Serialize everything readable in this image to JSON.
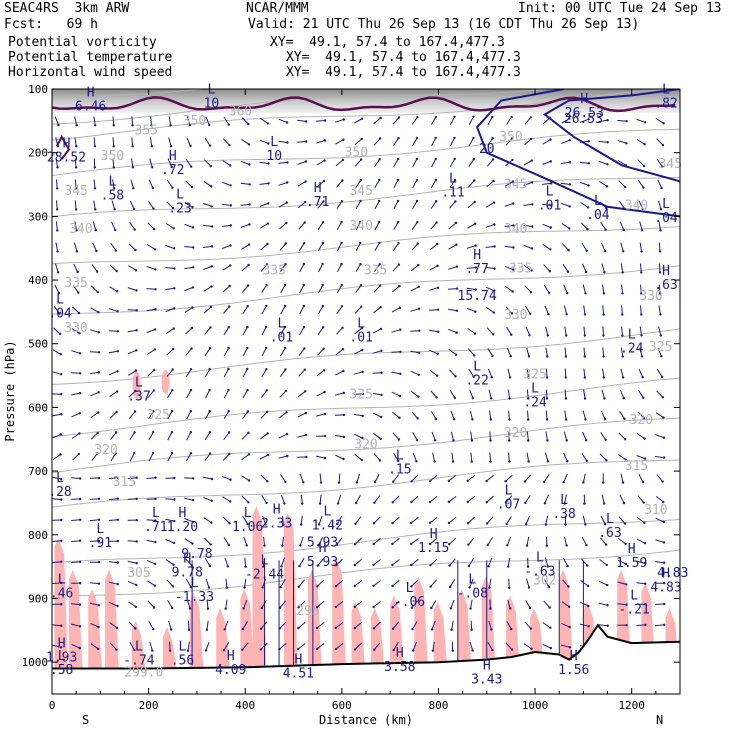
{
  "header": {
    "model": "SEAC4RS  3km ARW",
    "center": "NCAR/MMM",
    "init": "Init: 00 UTC Tue 24 Sep 13",
    "fcst": "Fcst:   69 h",
    "valid": "Valid: 21 UTC Thu 26 Sep 13 (16 CDT Thu 26 Sep 13)"
  },
  "fields": [
    {
      "name": "Potential vorticity",
      "xy": "XY=  49.1, 57.4 to 167.4,477.3",
      "color": "#000000"
    },
    {
      "name": "Potential temperature",
      "xy": "XY=  49.1, 57.4 to 167.4,477.3",
      "color": "#b4b4b4"
    },
    {
      "name": "Horizontal wind speed",
      "xy": "XY=  49.1, 57.4 to 167.4,477.3",
      "color": "#1a1a8c"
    }
  ],
  "chart_data": {
    "type": "cross-section",
    "xlabel": "Distance (km)",
    "ylabel": "Pressure (hPa)",
    "xlim": [
      0,
      1300
    ],
    "ylim": [
      1050,
      100
    ],
    "x_ticks": [
      "0",
      "200",
      "400",
      "600",
      "800",
      "1000",
      "1200"
    ],
    "y_ticks": [
      "100",
      "200",
      "300",
      "400",
      "500",
      "600",
      "700",
      "800",
      "900",
      "1000"
    ],
    "x_end_labels": {
      "left": "S",
      "right": "N"
    },
    "theta_labels": [
      {
        "t": "360",
        "x": 390,
        "p": 135
      },
      {
        "t": "355",
        "x": 195,
        "p": 165
      },
      {
        "t": "350",
        "x": 295,
        "p": 150
      },
      {
        "t": "350",
        "x": 125,
        "p": 205
      },
      {
        "t": "350",
        "x": 630,
        "p": 200
      },
      {
        "t": "350",
        "x": 950,
        "p": 175
      },
      {
        "t": "345",
        "x": 50,
        "p": 260
      },
      {
        "t": "345",
        "x": 640,
        "p": 260
      },
      {
        "t": "345",
        "x": 960,
        "p": 250
      },
      {
        "t": "345",
        "x": 1280,
        "p": 218
      },
      {
        "t": "340",
        "x": 60,
        "p": 320
      },
      {
        "t": "340",
        "x": 640,
        "p": 315
      },
      {
        "t": "340",
        "x": 960,
        "p": 320
      },
      {
        "t": "340",
        "x": 1210,
        "p": 283
      },
      {
        "t": "335",
        "x": 460,
        "p": 385
      },
      {
        "t": "335",
        "x": 670,
        "p": 385
      },
      {
        "t": "335",
        "x": 50,
        "p": 405
      },
      {
        "t": "335",
        "x": 970,
        "p": 382
      },
      {
        "t": "330",
        "x": 50,
        "p": 475
      },
      {
        "t": "330",
        "x": 960,
        "p": 455
      },
      {
        "t": "330",
        "x": 1240,
        "p": 425
      },
      {
        "t": "325",
        "x": 220,
        "p": 612
      },
      {
        "t": "325",
        "x": 640,
        "p": 580
      },
      {
        "t": "325",
        "x": 1000,
        "p": 548
      },
      {
        "t": "325",
        "x": 1260,
        "p": 505
      },
      {
        "t": "320",
        "x": 112,
        "p": 667
      },
      {
        "t": "320",
        "x": 650,
        "p": 658
      },
      {
        "t": "320",
        "x": 960,
        "p": 640
      },
      {
        "t": "320",
        "x": 1220,
        "p": 620
      },
      {
        "t": "315",
        "x": 150,
        "p": 717
      },
      {
        "t": "315",
        "x": 1210,
        "p": 692
      },
      {
        "t": "310",
        "x": 1250,
        "p": 761
      },
      {
        "t": "305",
        "x": 180,
        "p": 860
      },
      {
        "t": "302",
        "x": 1020,
        "p": 872
      },
      {
        "t": "295",
        "x": 530,
        "p": 920
      },
      {
        "t": "299.0",
        "x": 190,
        "p": 1016
      }
    ],
    "wind_labels": [
      {
        "t": "20",
        "x": 900,
        "p": 194
      },
      {
        "t": "26.53",
        "x": 1100,
        "p": 147
      },
      {
        "t": "15.74",
        "x": 880,
        "p": 425
      },
      {
        "t": "5.93",
        "x": 560,
        "p": 812
      },
      {
        "t": "9.78",
        "x": 300,
        "p": 830
      },
      {
        "t": "4.83",
        "x": 1285,
        "p": 860
      }
    ],
    "extrema": [
      {
        "t": "H",
        "v": "6.46",
        "x": 80,
        "p": 115
      },
      {
        "t": "L",
        "v": "10",
        "x": 330,
        "p": 110
      },
      {
        "t": "H",
        "v": "26.53",
        "x": 1102,
        "p": 125
      },
      {
        "t": "L",
        "v": ".82",
        "x": 1292,
        "p": 110
      },
      {
        "t": "H",
        "v": "28.52",
        "x": 30,
        "p": 195
      },
      {
        "t": "L",
        "v": "10",
        "x": 460,
        "p": 193
      },
      {
        "t": "H",
        "v": ".72",
        "x": 250,
        "p": 215
      },
      {
        "t": "L",
        "v": ".58",
        "x": 125,
        "p": 255
      },
      {
        "t": "L",
        "v": ".23",
        "x": 265,
        "p": 275
      },
      {
        "t": "H",
        "v": ".71",
        "x": 550,
        "p": 265
      },
      {
        "t": "L",
        "v": ".11",
        "x": 830,
        "p": 250
      },
      {
        "t": "L",
        "v": ".01",
        "x": 1030,
        "p": 270
      },
      {
        "t": "L",
        "v": ".04",
        "x": 1130,
        "p": 285
      },
      {
        "t": "L",
        "v": ".04",
        "x": 1290,
        "p": 290
      },
      {
        "t": "H",
        "v": ".77",
        "x": 880,
        "p": 370
      },
      {
        "t": "H",
        "v": ".63",
        "x": 1292,
        "p": 395
      },
      {
        "t": "L",
        "v": ".04",
        "x": 10,
        "p": 440
      },
      {
        "t": "L",
        "v": ".01",
        "x": 475,
        "p": 478
      },
      {
        "t": "L",
        "v": ".01",
        "x": 640,
        "p": 478
      },
      {
        "t": "L",
        "v": ".24",
        "x": 1200,
        "p": 495
      },
      {
        "t": "L",
        "v": ".37",
        "x": 180,
        "p": 570
      },
      {
        "t": "L",
        "v": ".22",
        "x": 880,
        "p": 545
      },
      {
        "t": "L",
        "v": ".24",
        "x": 1000,
        "p": 580
      },
      {
        "t": "L",
        "v": ".15",
        "x": 720,
        "p": 685
      },
      {
        "t": "L",
        "v": ".28",
        "x": 10,
        "p": 720
      },
      {
        "t": "L",
        "v": ".07",
        "x": 945,
        "p": 740
      },
      {
        "t": "L",
        "v": ".38",
        "x": 1060,
        "p": 755
      },
      {
        "t": "L",
        "v": ".71",
        "x": 215,
        "p": 775
      },
      {
        "t": "H",
        "v": "1.20",
        "x": 270,
        "p": 775
      },
      {
        "t": "L",
        "v": "1.06",
        "x": 405,
        "p": 775
      },
      {
        "t": "H",
        "v": "2.33",
        "x": 465,
        "p": 770
      },
      {
        "t": "L",
        "v": "1.42",
        "x": 570,
        "p": 773
      },
      {
        "t": "L",
        "v": ".63",
        "x": 1155,
        "p": 785
      },
      {
        "t": "L",
        "v": ".91",
        "x": 100,
        "p": 800
      },
      {
        "t": "H",
        "v": "1.15",
        "x": 790,
        "p": 808
      },
      {
        "t": "H",
        "v": "1.59",
        "x": 1200,
        "p": 832
      },
      {
        "t": "H",
        "v": "9.78",
        "x": 280,
        "p": 847
      },
      {
        "t": "L",
        "v": "-2.44",
        "x": 440,
        "p": 850
      },
      {
        "t": "H",
        "v": "5.93",
        "x": 560,
        "p": 830
      },
      {
        "t": "L",
        "v": "-.63",
        "x": 1010,
        "p": 845
      },
      {
        "t": "L",
        "v": "-.08",
        "x": 870,
        "p": 880
      },
      {
        "t": "L",
        "v": "-1.33",
        "x": 295,
        "p": 885
      },
      {
        "t": "L",
        "v": ".46",
        "x": 20,
        "p": 880
      },
      {
        "t": "L",
        "v": "-.06",
        "x": 740,
        "p": 893
      },
      {
        "t": "H",
        "v": "4.83",
        "x": 1275,
        "p": 870
      },
      {
        "t": "L",
        "v": "-.21",
        "x": 1205,
        "p": 905
      },
      {
        "t": "H",
        "v": "1.93",
        "x": 20,
        "p": 980
      },
      {
        "t": "L",
        "v": "-.74",
        "x": 180,
        "p": 985
      },
      {
        "t": "L",
        "v": ".56",
        "x": 270,
        "p": 985
      },
      {
        "t": "H",
        "v": "4.09",
        "x": 370,
        "p": 1000
      },
      {
        "t": "H",
        "v": "4.51",
        "x": 510,
        "p": 1005
      },
      {
        "t": "H",
        "v": "3.58",
        "x": 720,
        "p": 995
      },
      {
        "t": "H",
        "v": "3.43",
        "x": 900,
        "p": 1015
      },
      {
        "t": "H",
        "v": "1.56",
        "x": 1080,
        "p": 1000
      },
      {
        "t": "L",
        "v": ".58",
        "x": 20,
        "p": 1000
      }
    ],
    "terrain_p": [
      {
        "x": 0,
        "p": 1010
      },
      {
        "x": 200,
        "p": 1010
      },
      {
        "x": 400,
        "p": 1008
      },
      {
        "x": 600,
        "p": 1003
      },
      {
        "x": 800,
        "p": 1000
      },
      {
        "x": 900,
        "p": 996
      },
      {
        "x": 950,
        "p": 992
      },
      {
        "x": 1000,
        "p": 984
      },
      {
        "x": 1050,
        "p": 988
      },
      {
        "x": 1070,
        "p": 996
      },
      {
        "x": 1090,
        "p": 985
      },
      {
        "x": 1110,
        "p": 965
      },
      {
        "x": 1130,
        "p": 942
      },
      {
        "x": 1150,
        "p": 960
      },
      {
        "x": 1200,
        "p": 970
      },
      {
        "x": 1300,
        "p": 968
      }
    ],
    "colors": {
      "theta": "#b4b4b4",
      "wind": "#1a1a8c",
      "pv_high": "#5a1050",
      "pv_fill": "#ffb4b4",
      "barb": "#1a1a8c"
    }
  }
}
